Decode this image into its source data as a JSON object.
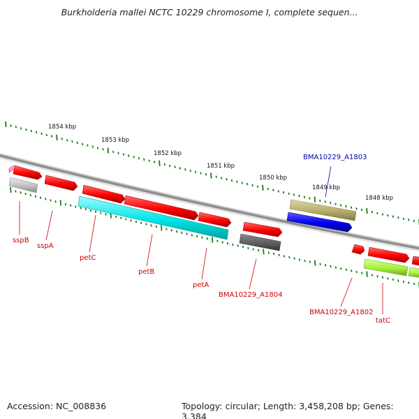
{
  "title": "Burkholderia mallei NCTC 10229 chromosome I, complete sequen...",
  "footer": {
    "accession": "Accession: NC_008836",
    "summary": "Topology: circular; Length: 3,458,208 bp; Genes: 3,384"
  },
  "ruler": {
    "ticks": [
      {
        "label": "1854 kbp"
      },
      {
        "label": "1853 kbp"
      },
      {
        "label": "1852 kbp"
      },
      {
        "label": "1851 kbp"
      },
      {
        "label": "1850 kbp"
      },
      {
        "label": "1849 kbp"
      },
      {
        "label": "1848 kbp"
      }
    ]
  },
  "genes": [
    {
      "label": "sspB",
      "color": "#ff0000"
    },
    {
      "label": "sspA",
      "color": "#ff0000"
    },
    {
      "label": "petC",
      "color": "#ff0000"
    },
    {
      "label": "petB",
      "color": "#ff0000"
    },
    {
      "label": "petA",
      "color": "#ff0000"
    },
    {
      "label": "BMA10229_A1804",
      "color": "#ff0000"
    },
    {
      "label": "BMA10229_A1803",
      "color": "#0000cc"
    },
    {
      "label": "BMA10229_A1802",
      "color": "#ff0000"
    },
    {
      "label": "tatC",
      "color": "#ff0000"
    }
  ],
  "colors": {
    "cds": "#ff0000",
    "gene_gray": "#c8c8c8",
    "gene_dark": "#5a5a5a",
    "gene_cyan": "#00e5e5",
    "gene_olive": "#b5ad6a",
    "gene_blue": "#0000ee",
    "gene_lime": "#a6f03a",
    "gene_pink": "#ff88cc",
    "backbone": "#8c8c8c",
    "ticks": "#1a7a1a",
    "label_red": "#cc0000",
    "label_blue": "#0000aa"
  }
}
